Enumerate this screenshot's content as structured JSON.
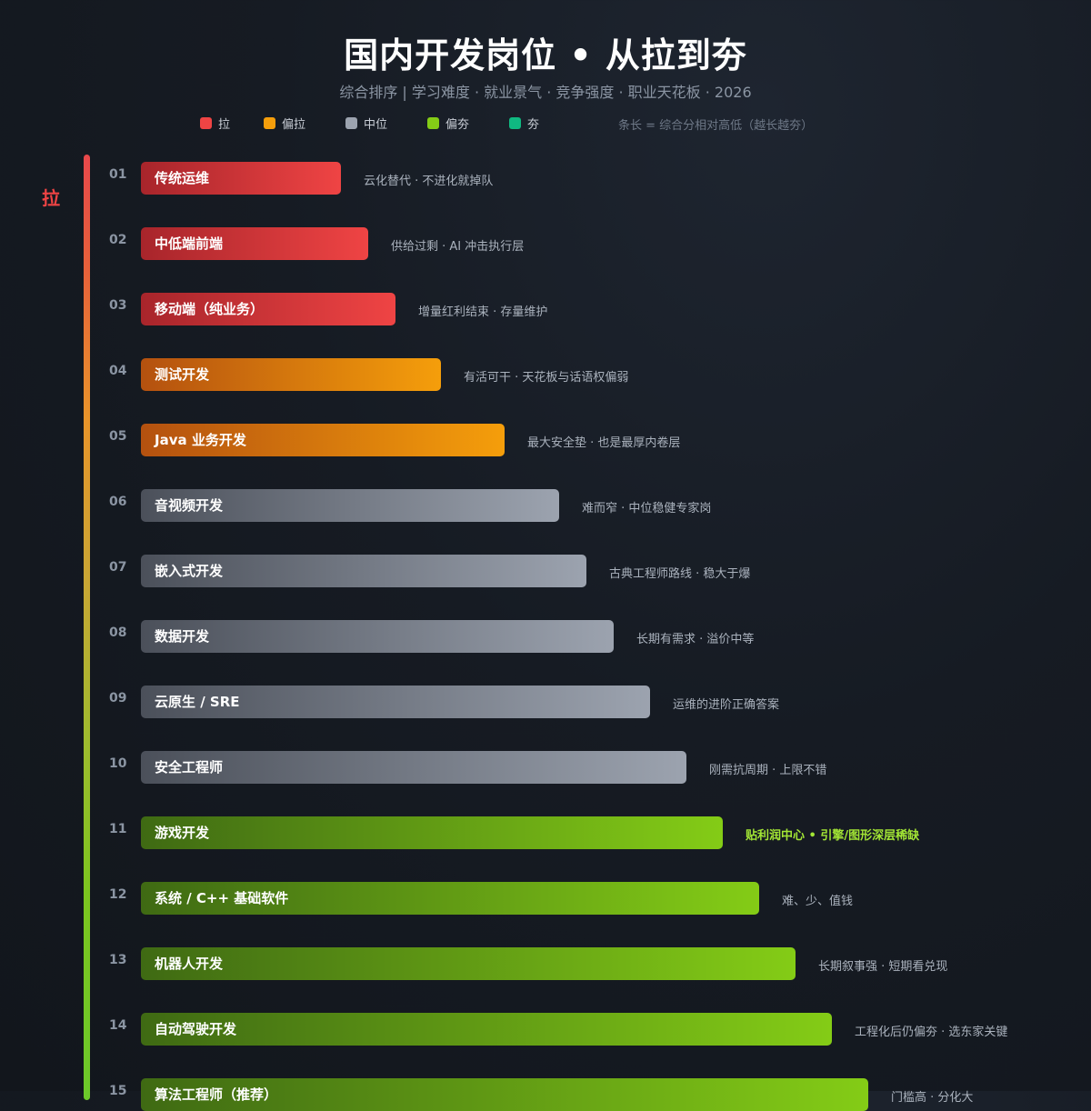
{
  "header": {
    "title": "国内开发岗位 • 从拉到夯",
    "subtitle": "综合排序 | 学习难度 · 就业景气 · 竞争强度 · 职业天花板 · 2026"
  },
  "legend": {
    "items": [
      {
        "label": "拉",
        "color": "#ef4444"
      },
      {
        "label": "偏拉",
        "color": "#f59e0b"
      },
      {
        "label": "中位",
        "color": "#9ca3af"
      },
      {
        "label": "偏夯",
        "color": "#84cc16"
      },
      {
        "label": "夯",
        "color": "#10b981"
      }
    ],
    "note": "条长 = 综合分相对高低（越长越夯）"
  },
  "tier_rail": {
    "label": "拉",
    "label_color": "#ef4444"
  },
  "chart_data": {
    "type": "bar",
    "orientation": "horizontal",
    "title": "国内开发岗位 • 从拉到夯",
    "subtitle": "综合排序 | 学习难度 · 就业景气 · 竞争强度 · 职业天花板 · 2026",
    "value_meaning": "条长 = 综合分相对高低（越长越夯）",
    "tier_colors": {
      "拉": {
        "from": "#a8252b",
        "to": "#ef4444"
      },
      "偏拉": {
        "from": "#b4510f",
        "to": "#f59e0b"
      },
      "中位": {
        "from": "#4b505a",
        "to": "#9ca3af"
      },
      "偏夯": {
        "from": "#3f6a13",
        "to": "#84cc16"
      }
    },
    "items": [
      {
        "rank": "01",
        "name": "传统运维",
        "tier": "拉",
        "value": 220,
        "note": "云化替代 · 不进化就掉队",
        "highlight": false
      },
      {
        "rank": "02",
        "name": "中低端前端",
        "tier": "拉",
        "value": 250,
        "note": "供给过剩 · AI 冲击执行层",
        "highlight": false
      },
      {
        "rank": "03",
        "name": "移动端（纯业务）",
        "tier": "拉",
        "value": 280,
        "note": "增量红利结束 · 存量维护",
        "highlight": false
      },
      {
        "rank": "04",
        "name": "测试开发",
        "tier": "偏拉",
        "value": 330,
        "note": "有活可干 · 天花板与话语权偏弱",
        "highlight": false
      },
      {
        "rank": "05",
        "name": "Java 业务开发",
        "tier": "偏拉",
        "value": 400,
        "note": "最大安全垫 · 也是最厚内卷层",
        "highlight": false
      },
      {
        "rank": "06",
        "name": "音视频开发",
        "tier": "中位",
        "value": 460,
        "note": "难而窄 · 中位稳健专家岗",
        "highlight": false
      },
      {
        "rank": "07",
        "name": "嵌入式开发",
        "tier": "中位",
        "value": 490,
        "note": "古典工程师路线 · 稳大于爆",
        "highlight": false
      },
      {
        "rank": "08",
        "name": "数据开发",
        "tier": "中位",
        "value": 520,
        "note": "长期有需求 · 溢价中等",
        "highlight": false
      },
      {
        "rank": "09",
        "name": "云原生 / SRE",
        "tier": "中位",
        "value": 560,
        "note": "运维的进阶正确答案",
        "highlight": false
      },
      {
        "rank": "10",
        "name": "安全工程师",
        "tier": "中位",
        "value": 600,
        "note": "刚需抗周期 · 上限不错",
        "highlight": false
      },
      {
        "rank": "11",
        "name": "游戏开发",
        "tier": "偏夯",
        "value": 640,
        "note": "贴利润中心 • 引擎/图形深层稀缺",
        "highlight": true
      },
      {
        "rank": "12",
        "name": "系统 / C++ 基础软件",
        "tier": "偏夯",
        "value": 680,
        "note": "难、少、值钱",
        "highlight": false
      },
      {
        "rank": "13",
        "name": "机器人开发",
        "tier": "偏夯",
        "value": 720,
        "note": "长期叙事强 · 短期看兑现",
        "highlight": false
      },
      {
        "rank": "14",
        "name": "自动驾驶开发",
        "tier": "偏夯",
        "value": 760,
        "note": "工程化后仍偏夯 · 选东家关键",
        "highlight": false
      },
      {
        "rank": "15",
        "name": "算法工程师（推荐）",
        "tier": "偏夯",
        "value": 800,
        "note": "门槛高 · 分化大",
        "highlight": false
      }
    ]
  }
}
